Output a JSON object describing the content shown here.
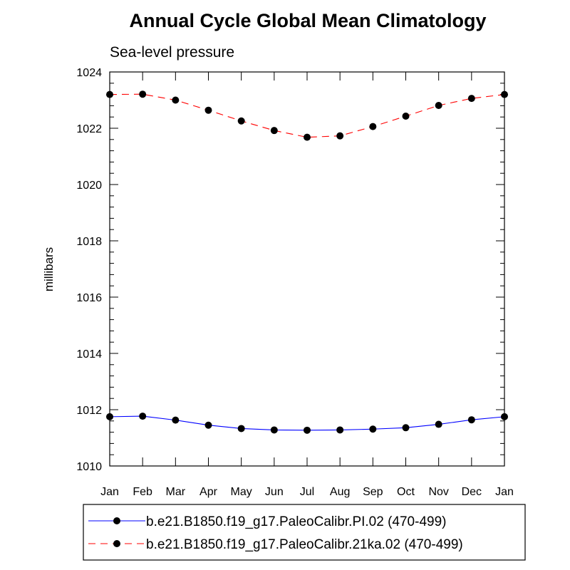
{
  "chart_data": {
    "type": "line",
    "title": "Annual Cycle Global Mean Climatology",
    "subtitle": "Sea-level pressure",
    "xlabel": "",
    "ylabel": "millibars",
    "ylim": [
      1010,
      1024
    ],
    "yticks": [
      "1010",
      "1012",
      "1014",
      "1016",
      "1018",
      "1020",
      "1022",
      "1024"
    ],
    "grid": false,
    "legend_position": "bottom",
    "categories": [
      "Jan",
      "Feb",
      "Mar",
      "Apr",
      "May",
      "Jun",
      "Jul",
      "Aug",
      "Sep",
      "Oct",
      "Nov",
      "Dec",
      "Jan"
    ],
    "series": [
      {
        "name": "b.e21.B1850.f19_g17.PaleoCalibr.PI.02 (470-499)",
        "color": "#0000ff",
        "dash": "solid",
        "values": [
          1011.75,
          1011.77,
          1011.63,
          1011.45,
          1011.33,
          1011.28,
          1011.27,
          1011.28,
          1011.31,
          1011.36,
          1011.48,
          1011.64,
          1011.75
        ]
      },
      {
        "name": "b.e21.B1850.f19_g17.PaleoCalibr.21ka.02 (470-499)",
        "color": "#ff0000",
        "dash": "dashed",
        "values": [
          1023.2,
          1023.21,
          1023.0,
          1022.64,
          1022.26,
          1021.92,
          1021.68,
          1021.73,
          1022.06,
          1022.43,
          1022.81,
          1023.06,
          1023.2
        ]
      }
    ]
  }
}
